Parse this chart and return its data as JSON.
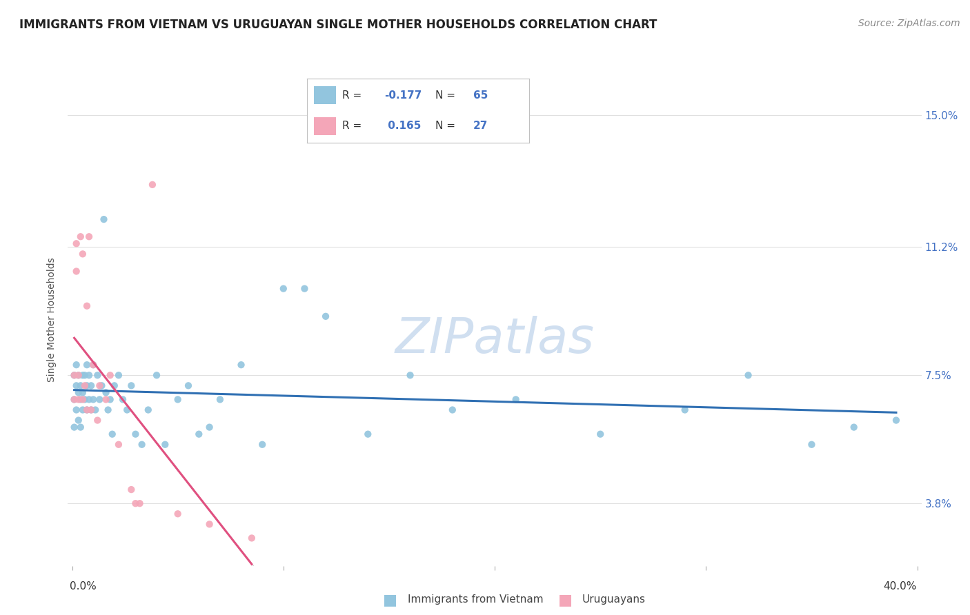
{
  "title": "IMMIGRANTS FROM VIETNAM VS URUGUAYAN SINGLE MOTHER HOUSEHOLDS CORRELATION CHART",
  "source": "Source: ZipAtlas.com",
  "xlabel_blue": "Immigrants from Vietnam",
  "xlabel_pink": "Uruguayans",
  "ylabel": "Single Mother Households",
  "xlim": [
    -0.002,
    0.402
  ],
  "ylim": [
    0.02,
    0.162
  ],
  "yticks": [
    0.038,
    0.075,
    0.112,
    0.15
  ],
  "ytick_labels": [
    "3.8%",
    "7.5%",
    "11.2%",
    "15.0%"
  ],
  "R_blue": -0.177,
  "N_blue": 65,
  "R_pink": 0.165,
  "N_pink": 27,
  "blue_color": "#92c5de",
  "pink_color": "#f4a6b8",
  "blue_line_color": "#3070b3",
  "pink_line_color": "#e05080",
  "gray_line_color": "#c8c8c8",
  "background_color": "#ffffff",
  "grid_color": "#e0e0e0",
  "title_fontsize": 12,
  "source_fontsize": 10,
  "legend_fontsize": 11,
  "blue_scatter_x": [
    0.001,
    0.001,
    0.001,
    0.002,
    0.002,
    0.002,
    0.003,
    0.003,
    0.003,
    0.004,
    0.004,
    0.004,
    0.005,
    0.005,
    0.005,
    0.006,
    0.006,
    0.007,
    0.007,
    0.007,
    0.008,
    0.008,
    0.009,
    0.009,
    0.01,
    0.01,
    0.011,
    0.012,
    0.013,
    0.014,
    0.015,
    0.016,
    0.017,
    0.018,
    0.019,
    0.02,
    0.022,
    0.024,
    0.026,
    0.028,
    0.03,
    0.033,
    0.036,
    0.04,
    0.044,
    0.05,
    0.055,
    0.06,
    0.065,
    0.07,
    0.08,
    0.09,
    0.1,
    0.11,
    0.12,
    0.14,
    0.16,
    0.18,
    0.21,
    0.25,
    0.29,
    0.32,
    0.35,
    0.37,
    0.39
  ],
  "blue_scatter_y": [
    0.075,
    0.068,
    0.06,
    0.072,
    0.065,
    0.078,
    0.07,
    0.075,
    0.062,
    0.068,
    0.072,
    0.06,
    0.075,
    0.065,
    0.07,
    0.068,
    0.075,
    0.072,
    0.065,
    0.078,
    0.068,
    0.075,
    0.065,
    0.072,
    0.078,
    0.068,
    0.065,
    0.075,
    0.068,
    0.072,
    0.12,
    0.07,
    0.065,
    0.068,
    0.058,
    0.072,
    0.075,
    0.068,
    0.065,
    0.072,
    0.058,
    0.055,
    0.065,
    0.075,
    0.055,
    0.068,
    0.072,
    0.058,
    0.06,
    0.068,
    0.078,
    0.055,
    0.1,
    0.1,
    0.092,
    0.058,
    0.075,
    0.065,
    0.068,
    0.058,
    0.065,
    0.075,
    0.055,
    0.06,
    0.062
  ],
  "pink_scatter_x": [
    0.001,
    0.001,
    0.002,
    0.002,
    0.003,
    0.003,
    0.004,
    0.005,
    0.005,
    0.006,
    0.007,
    0.007,
    0.008,
    0.009,
    0.01,
    0.012,
    0.013,
    0.016,
    0.018,
    0.022,
    0.028,
    0.03,
    0.032,
    0.038,
    0.05,
    0.065,
    0.085
  ],
  "pink_scatter_y": [
    0.075,
    0.068,
    0.113,
    0.105,
    0.068,
    0.075,
    0.115,
    0.068,
    0.11,
    0.072,
    0.065,
    0.095,
    0.115,
    0.065,
    0.078,
    0.062,
    0.072,
    0.068,
    0.075,
    0.055,
    0.042,
    0.038,
    0.038,
    0.13,
    0.035,
    0.032,
    0.028
  ]
}
